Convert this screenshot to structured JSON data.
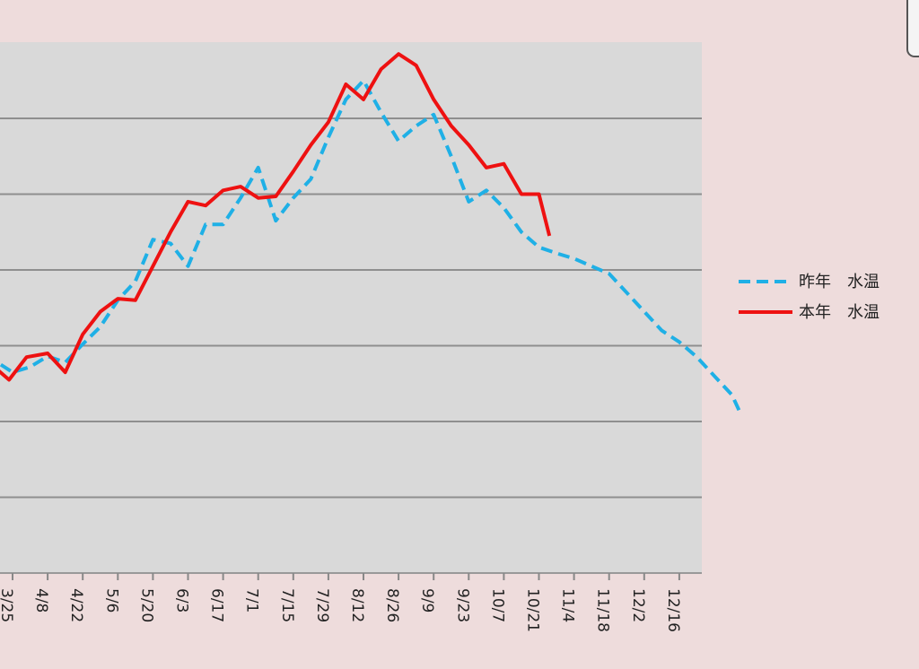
{
  "chart_data": {
    "type": "line",
    "title": "",
    "xlabel": "",
    "ylabel": "",
    "ylim": [
      0,
      7
    ],
    "grid": true,
    "legend_position": "right",
    "categories": [
      "3/25",
      "4/8",
      "4/22",
      "5/6",
      "5/20",
      "6/3",
      "6/17",
      "7/1",
      "7/15",
      "7/29",
      "8/12",
      "8/26",
      "9/9",
      "9/23",
      "10/7",
      "10/21",
      "11/4",
      "11/18",
      "12/2",
      "12/16"
    ],
    "series": [
      {
        "name": "昨年　水温",
        "color": "#1fb0e6",
        "style": "dashed",
        "points": [
          [
            -1.6,
            2.45
          ],
          [
            -1.1,
            2.6
          ],
          [
            -0.5,
            2.8
          ],
          [
            0,
            2.65
          ],
          [
            0.5,
            2.72
          ],
          [
            1,
            2.86
          ],
          [
            1.5,
            2.78
          ],
          [
            2,
            3.02
          ],
          [
            2.5,
            3.25
          ],
          [
            3,
            3.6
          ],
          [
            3.5,
            3.85
          ],
          [
            4,
            4.4
          ],
          [
            4.5,
            4.35
          ],
          [
            5,
            4.05
          ],
          [
            5.5,
            4.6
          ],
          [
            6,
            4.6
          ],
          [
            6.5,
            4.95
          ],
          [
            7,
            5.35
          ],
          [
            7.5,
            4.65
          ],
          [
            8,
            4.95
          ],
          [
            8.5,
            5.2
          ],
          [
            9,
            5.75
          ],
          [
            9.5,
            6.25
          ],
          [
            10,
            6.5
          ],
          [
            10.5,
            6.08
          ],
          [
            11,
            5.7
          ],
          [
            11.5,
            5.9
          ],
          [
            12,
            6.05
          ],
          [
            12.5,
            5.5
          ],
          [
            13,
            4.9
          ],
          [
            13.5,
            5.05
          ],
          [
            14,
            4.82
          ],
          [
            14.5,
            4.5
          ],
          [
            15,
            4.3
          ],
          [
            15.5,
            4.22
          ],
          [
            16,
            4.15
          ],
          [
            16.5,
            4.05
          ],
          [
            17,
            3.95
          ],
          [
            17.5,
            3.7
          ],
          [
            18,
            3.45
          ],
          [
            18.5,
            3.2
          ],
          [
            19,
            3.05
          ],
          [
            19.5,
            2.85
          ],
          [
            20,
            2.6
          ],
          [
            20.5,
            2.35
          ],
          [
            20.7,
            2.15
          ]
        ]
      },
      {
        "name": "本年　水温",
        "color": "#ee1111",
        "style": "solid",
        "points": [
          [
            -1.6,
            2.35
          ],
          [
            -1.1,
            2.65
          ],
          [
            -0.6,
            2.75
          ],
          [
            -0.1,
            2.55
          ],
          [
            0.4,
            2.85
          ],
          [
            1,
            2.9
          ],
          [
            1.5,
            2.65
          ],
          [
            2,
            3.15
          ],
          [
            2.5,
            3.45
          ],
          [
            3,
            3.62
          ],
          [
            3.5,
            3.6
          ],
          [
            4,
            4.05
          ],
          [
            4.5,
            4.5
          ],
          [
            5,
            4.9
          ],
          [
            5.5,
            4.85
          ],
          [
            6,
            5.05
          ],
          [
            6.5,
            5.1
          ],
          [
            7,
            4.95
          ],
          [
            7.5,
            4.97
          ],
          [
            8,
            5.3
          ],
          [
            8.5,
            5.65
          ],
          [
            9,
            5.95
          ],
          [
            9.5,
            6.45
          ],
          [
            10,
            6.25
          ],
          [
            10.5,
            6.65
          ],
          [
            11,
            6.85
          ],
          [
            11.5,
            6.7
          ],
          [
            12,
            6.25
          ],
          [
            12.5,
            5.9
          ],
          [
            13,
            5.65
          ],
          [
            13.5,
            5.35
          ],
          [
            14,
            5.4
          ],
          [
            14.5,
            5.0
          ],
          [
            15,
            5.0
          ],
          [
            15.3,
            4.45
          ]
        ]
      }
    ]
  }
}
